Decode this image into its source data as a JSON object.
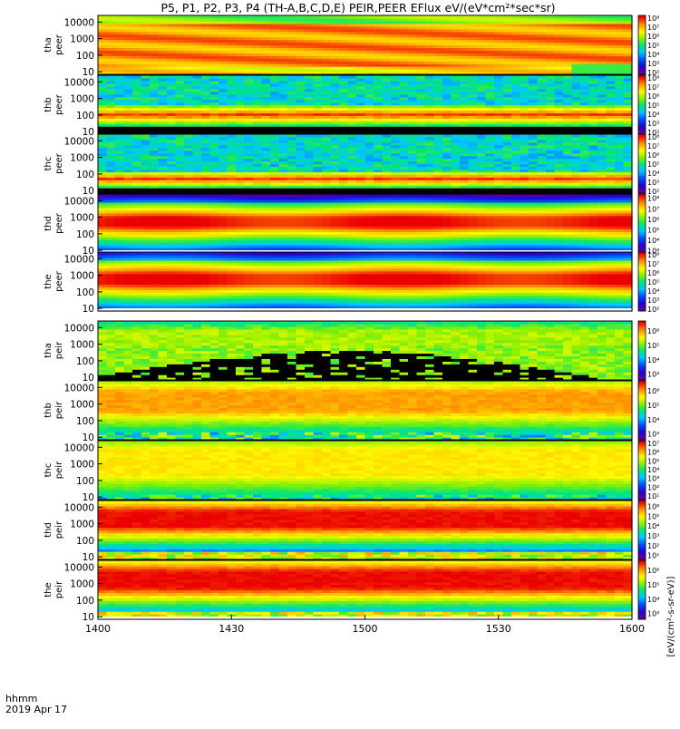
{
  "chart_data": {
    "type": "heatmap",
    "title": "P5, P1, P2, P3, P4 (TH-A,B,C,D,E) PEIR,PEER EFlux eV/(eV*cm²*sec*sr)",
    "x": {
      "tick_labels": [
        "1400",
        "1430",
        "1500",
        "1530",
        "1600"
      ],
      "tick_values_min": [
        0,
        30,
        60,
        90,
        120
      ],
      "range_min": [
        0,
        120
      ],
      "label_line1": "hhmm",
      "label_line2": "2019 Apr 17"
    },
    "y": {
      "scale": "log",
      "tick_labels": [
        "10",
        "100",
        "1000",
        "10000"
      ],
      "range_eV": [
        7,
        25000
      ]
    },
    "colorbar_label": "[eV/(cm²-s-sr-eV)]",
    "panels": [
      {
        "probe": "tha",
        "species": "peer",
        "label_line1": "tha",
        "label_line2": "peer",
        "cbar_ticks": [
          "10²",
          "10³",
          "10⁴",
          "10⁵",
          "10⁶",
          "10⁷",
          "10⁸"
        ],
        "cbar_range_log": [
          1.8,
          8.3
        ],
        "profile": "magnetosheath",
        "band_low_eV": 60,
        "band_high_eV": 5000,
        "black_below_eV": 0,
        "white_stripe": false
      },
      {
        "probe": "thb",
        "species": "peer",
        "label_line1": "thb",
        "label_line2": "peer",
        "cbar_ticks": [
          "10²",
          "10³",
          "10⁴",
          "10⁵",
          "10⁶",
          "10⁷",
          "10⁸"
        ],
        "cbar_range_log": [
          1.8,
          8.3
        ],
        "profile": "high_noise",
        "band_low_eV": 30,
        "band_high_eV": 400,
        "black_below_eV": 25,
        "white_stripe": false
      },
      {
        "probe": "thc",
        "species": "peer",
        "label_line1": "thc",
        "label_line2": "peer",
        "cbar_ticks": [
          "10²",
          "10³",
          "10⁴",
          "10⁵",
          "10⁶",
          "10⁷",
          "10⁸"
        ],
        "cbar_range_log": [
          1.8,
          8.3
        ],
        "profile": "high_noise",
        "band_low_eV": 20,
        "band_high_eV": 150,
        "black_below_eV": 15,
        "white_stripe": false
      },
      {
        "probe": "thd",
        "species": "peer",
        "label_line1": "thd",
        "label_line2": "peer",
        "cbar_ticks": [
          "10³",
          "10⁴",
          "10⁵",
          "10⁶",
          "10⁷",
          "10⁸"
        ],
        "cbar_range_log": [
          2.8,
          8.4
        ],
        "profile": "plasma_sheet",
        "band_low_eV": 150,
        "band_high_eV": 2000,
        "black_below_eV": 8,
        "white_stripe": true
      },
      {
        "probe": "the",
        "species": "peer",
        "label_line1": "the",
        "label_line2": "peer",
        "cbar_ticks": [
          "10²",
          "10³",
          "10⁴",
          "10⁵",
          "10⁶",
          "10⁷",
          "10⁸"
        ],
        "cbar_range_log": [
          1.8,
          8.3
        ],
        "profile": "plasma_sheet",
        "band_low_eV": 150,
        "band_high_eV": 2500,
        "black_below_eV": 8,
        "white_stripe": true
      },
      {
        "probe": "tha",
        "species": "peir",
        "label_line1": "tha",
        "label_line2": "peir",
        "cbar_ticks": [
          "10³",
          "10⁴",
          "10⁵",
          "10⁶"
        ],
        "cbar_range_log": [
          2.6,
          6.7
        ],
        "profile": "ion_sparse",
        "band_low_eV": 1000,
        "band_high_eV": 8000,
        "black_below_eV": 300,
        "white_stripe": false
      },
      {
        "probe": "thb",
        "species": "peir",
        "label_line1": "thb",
        "label_line2": "peir",
        "cbar_ticks": [
          "10³",
          "10⁴",
          "10⁵",
          "10⁶"
        ],
        "cbar_range_log": [
          2.6,
          6.7
        ],
        "profile": "ion_orange",
        "band_low_eV": 300,
        "band_high_eV": 8000,
        "black_below_eV": 0,
        "white_stripe": false
      },
      {
        "probe": "thc",
        "species": "peir",
        "label_line1": "thc",
        "label_line2": "peir",
        "cbar_ticks": [
          "10¹",
          "10²",
          "10³",
          "10⁴",
          "10⁵",
          "10⁶",
          "10⁷"
        ],
        "cbar_range_log": [
          0.6,
          7.3
        ],
        "profile": "ion_yellow",
        "band_low_eV": 200,
        "band_high_eV": 8000,
        "black_below_eV": 0,
        "white_stripe": false
      },
      {
        "probe": "thd",
        "species": "peir",
        "label_line1": "thd",
        "label_line2": "peir",
        "cbar_ticks": [
          "10¹",
          "10²",
          "10³",
          "10⁴",
          "10⁵",
          "10⁶"
        ],
        "cbar_range_log": [
          0.6,
          6.6
        ],
        "profile": "ion_red",
        "band_low_eV": 500,
        "band_high_eV": 8000,
        "black_below_eV": 0,
        "white_stripe": false
      },
      {
        "probe": "the",
        "species": "peir",
        "label_line1": "the",
        "label_line2": "peir",
        "cbar_ticks": [
          "10³",
          "10⁴",
          "10⁵",
          "10⁶"
        ],
        "cbar_range_log": [
          2.6,
          6.7
        ],
        "profile": "ion_red",
        "band_low_eV": 400,
        "band_high_eV": 8000,
        "black_below_eV": 0,
        "white_stripe": true
      }
    ]
  }
}
